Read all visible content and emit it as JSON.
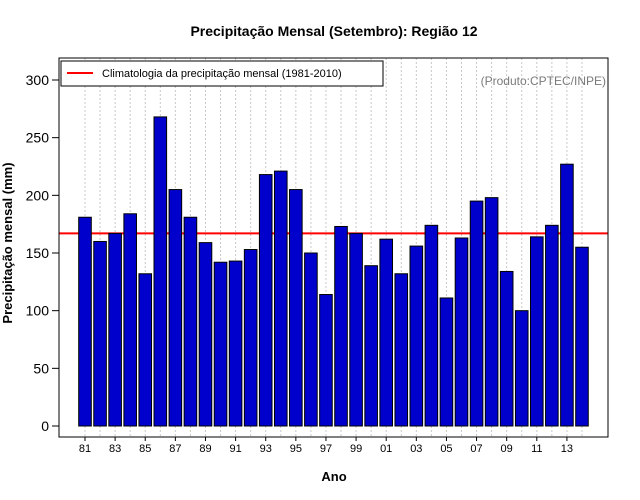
{
  "chart_data": {
    "type": "bar",
    "title": "Precipitação Mensal (Setembro): Região 12",
    "xlabel": "Ano",
    "ylabel": "Precipitação mensal (mm)",
    "credit": "(Produto:CPTEC/INPE)",
    "ylim": [
      0,
      320
    ],
    "yticks": [
      0,
      50,
      100,
      150,
      200,
      250,
      300
    ],
    "categories": [
      "81",
      "82",
      "83",
      "84",
      "85",
      "86",
      "87",
      "88",
      "89",
      "90",
      "91",
      "92",
      "93",
      "94",
      "95",
      "96",
      "97",
      "98",
      "99",
      "00",
      "01",
      "02",
      "03",
      "04",
      "05",
      "06",
      "07",
      "08",
      "09",
      "10",
      "11",
      "12",
      "13",
      "14"
    ],
    "xtick_labels": [
      "81",
      "83",
      "85",
      "87",
      "89",
      "91",
      "93",
      "95",
      "97",
      "99",
      "01",
      "03",
      "05",
      "07",
      "09",
      "11",
      "13"
    ],
    "values": [
      181,
      160,
      167,
      184,
      132,
      268,
      205,
      181,
      159,
      142,
      143,
      153,
      218,
      221,
      205,
      150,
      114,
      173,
      167,
      139,
      162,
      132,
      156,
      174,
      111,
      163,
      195,
      198,
      134,
      100,
      164,
      174,
      227,
      155
    ],
    "climatology": {
      "label": "Climatologia da precipitação mensal (1981-2010)",
      "value": 167
    },
    "grid": "vertical-dotted",
    "legend_position": "top-left",
    "colors": {
      "bar_fill": "#0000cc",
      "bar_stroke": "#000000",
      "climatology_line": "#ff0000",
      "grid": "#c8c8c8"
    }
  }
}
